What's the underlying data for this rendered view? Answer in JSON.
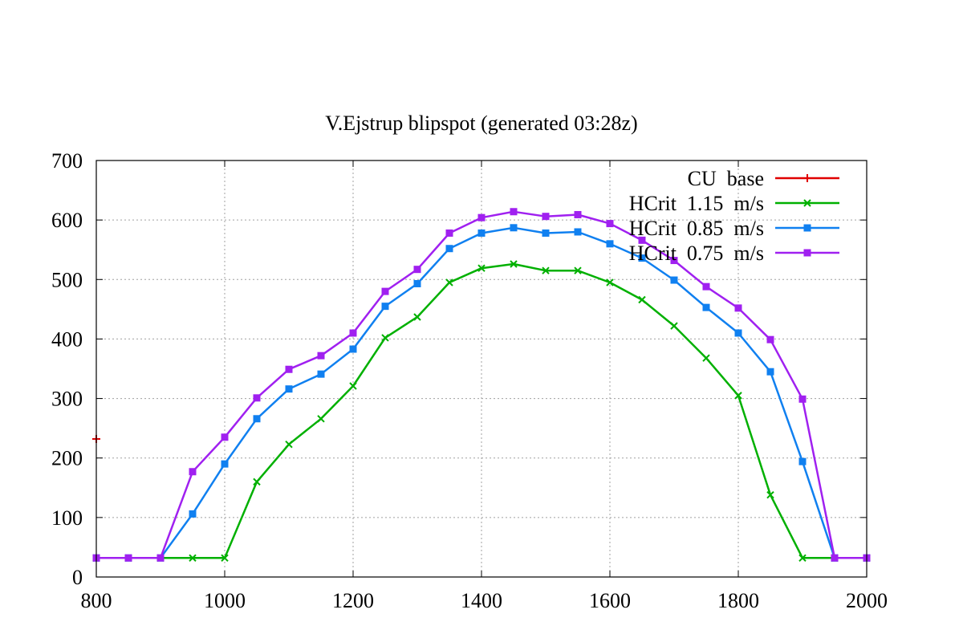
{
  "chart_data": {
    "type": "line",
    "title": "V.Ejstrup  blipspot  (generated  03:28z)",
    "xlabel": "",
    "ylabel": "",
    "xlim": [
      800,
      2000
    ],
    "ylim": [
      0,
      700
    ],
    "xticks": [
      800,
      1000,
      1200,
      1400,
      1600,
      1800,
      2000
    ],
    "yticks": [
      0,
      100,
      200,
      300,
      400,
      500,
      600,
      700
    ],
    "grid": true,
    "legend_position": "top-right",
    "series": [
      {
        "name": "CU  base",
        "color": "#e00000",
        "marker": "plus",
        "points": [
          [
            800,
            232
          ]
        ]
      },
      {
        "name": "HCrit  1.15  m/s",
        "color": "#00b000",
        "marker": "cross",
        "points": [
          [
            800,
            32
          ],
          [
            850,
            32
          ],
          [
            900,
            32
          ],
          [
            950,
            32
          ],
          [
            1000,
            32
          ],
          [
            1050,
            160
          ],
          [
            1100,
            223
          ],
          [
            1150,
            266
          ],
          [
            1200,
            321
          ],
          [
            1250,
            402
          ],
          [
            1300,
            437
          ],
          [
            1350,
            495
          ],
          [
            1400,
            519
          ],
          [
            1450,
            526
          ],
          [
            1500,
            515
          ],
          [
            1550,
            515
          ],
          [
            1600,
            495
          ],
          [
            1650,
            466
          ],
          [
            1700,
            422
          ],
          [
            1750,
            368
          ],
          [
            1800,
            305
          ],
          [
            1850,
            138
          ],
          [
            1900,
            32
          ],
          [
            1950,
            32
          ],
          [
            2000,
            32
          ]
        ]
      },
      {
        "name": "HCrit  0.85  m/s",
        "color": "#1080f0",
        "marker": "square",
        "points": [
          [
            800,
            32
          ],
          [
            850,
            32
          ],
          [
            900,
            32
          ],
          [
            950,
            106
          ],
          [
            1000,
            190
          ],
          [
            1050,
            266
          ],
          [
            1100,
            316
          ],
          [
            1150,
            341
          ],
          [
            1200,
            383
          ],
          [
            1250,
            455
          ],
          [
            1300,
            493
          ],
          [
            1350,
            552
          ],
          [
            1400,
            578
          ],
          [
            1450,
            587
          ],
          [
            1500,
            578
          ],
          [
            1550,
            580
          ],
          [
            1600,
            560
          ],
          [
            1650,
            536
          ],
          [
            1700,
            499
          ],
          [
            1750,
            453
          ],
          [
            1800,
            410
          ],
          [
            1850,
            345
          ],
          [
            1900,
            194
          ],
          [
            1950,
            32
          ],
          [
            2000,
            32
          ]
        ]
      },
      {
        "name": "HCrit  0.75  m/s",
        "color": "#a020f0",
        "marker": "square",
        "points": [
          [
            800,
            32
          ],
          [
            850,
            32
          ],
          [
            900,
            32
          ],
          [
            950,
            177
          ],
          [
            1000,
            235
          ],
          [
            1050,
            301
          ],
          [
            1100,
            349
          ],
          [
            1150,
            372
          ],
          [
            1200,
            410
          ],
          [
            1250,
            480
          ],
          [
            1300,
            517
          ],
          [
            1350,
            578
          ],
          [
            1400,
            604
          ],
          [
            1450,
            614
          ],
          [
            1500,
            606
          ],
          [
            1550,
            609
          ],
          [
            1600,
            594
          ],
          [
            1650,
            566
          ],
          [
            1700,
            532
          ],
          [
            1750,
            488
          ],
          [
            1800,
            452
          ],
          [
            1850,
            399
          ],
          [
            1900,
            299
          ],
          [
            1950,
            32
          ],
          [
            2000,
            32
          ]
        ]
      }
    ]
  }
}
